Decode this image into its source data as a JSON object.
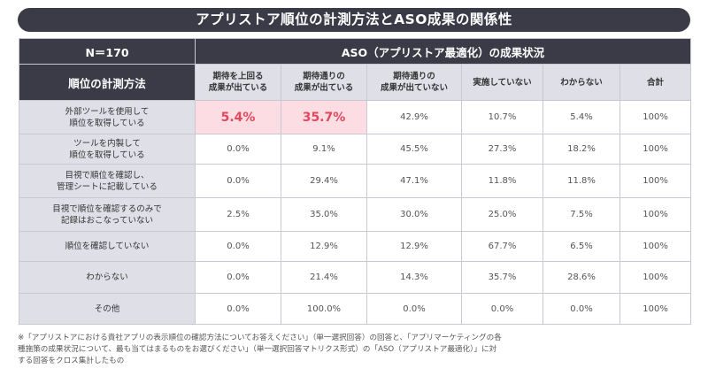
{
  "title": "アプリストア順位の計測方法とASO成果の関係性",
  "chart_data": {
    "type": "table",
    "corner_label": "N＝170",
    "group_header": "ASO（アプリストア最適化）の成果状況",
    "row_header_title": "順位の計測方法",
    "columns": [
      [
        "期待を上回る",
        "成果が出ている"
      ],
      [
        "期待通りの",
        "成果が出ている"
      ],
      [
        "期待通りの",
        "成果が出ていない"
      ],
      [
        "実施していない"
      ],
      [
        "わからない"
      ],
      [
        "合計"
      ]
    ],
    "rows": [
      {
        "label": [
          "外部ツールを使用して",
          "順位を取得している"
        ],
        "values": [
          "5.4%",
          "35.7%",
          "42.9%",
          "10.7%",
          "5.4%",
          "100%"
        ],
        "highlight": [
          0,
          1
        ]
      },
      {
        "label": [
          "ツールを内製して",
          "順位を取得している"
        ],
        "values": [
          "0.0%",
          "9.1%",
          "45.5%",
          "27.3%",
          "18.2%",
          "100%"
        ],
        "highlight": []
      },
      {
        "label": [
          "目視で順位を確認し、",
          "管理シートに記載している"
        ],
        "values": [
          "0.0%",
          "29.4%",
          "47.1%",
          "11.8%",
          "11.8%",
          "100%"
        ],
        "highlight": []
      },
      {
        "label": [
          "目視で順位を確認するのみで",
          "記録はおこなっていない"
        ],
        "values": [
          "2.5%",
          "35.0%",
          "30.0%",
          "25.0%",
          "7.5%",
          "100%"
        ],
        "highlight": []
      },
      {
        "label": [
          "順位を確認していない"
        ],
        "values": [
          "0.0%",
          "12.9%",
          "12.9%",
          "67.7%",
          "6.5%",
          "100%"
        ],
        "highlight": []
      },
      {
        "label": [
          "わからない"
        ],
        "values": [
          "0.0%",
          "21.4%",
          "14.3%",
          "35.7%",
          "28.6%",
          "100%"
        ],
        "highlight": []
      },
      {
        "label": [
          "その他"
        ],
        "values": [
          "0.0%",
          "100.0%",
          "0.0%",
          "0.0%",
          "0.0%",
          "100%"
        ],
        "highlight": []
      }
    ]
  },
  "footnote": [
    "※「アプリストアにおける貴社アプリの表示順位の確認方法についてお答えください」（単一選択回答）の回答と、「アプリマーケティングの各",
    "種施策の成果状況について、最も当てはまるものをお選びください」（単一選択回答マトリクス形式）の「ASO（アプリストア最適化）」に対",
    "する回答をクロス集計したもの"
  ],
  "colors": {
    "header_dark": "#3a3b47",
    "header_light": "#dfe0e7",
    "highlight_bg": "#fbdde3",
    "highlight_text": "#e0485e"
  }
}
